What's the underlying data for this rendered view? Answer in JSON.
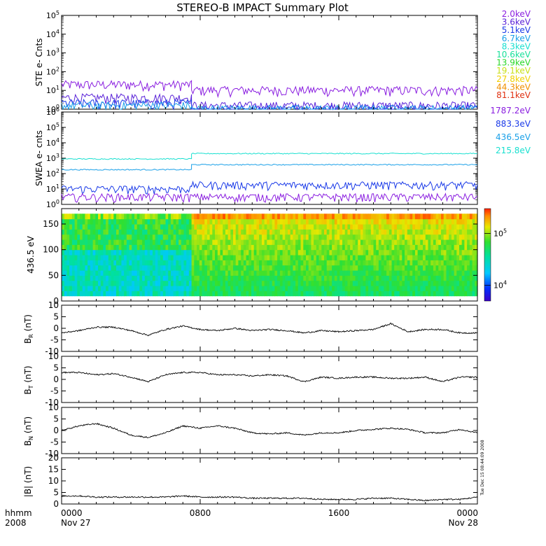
{
  "title": "STEREO-B IMPACT Summary Plot",
  "timestamp_vertical": "Tue Dec 15 08:44:09 2008",
  "time_axis": {
    "format_label": "hhmm",
    "year_label": "2008",
    "ticks": [
      {
        "hour": 0,
        "label": "0000",
        "date": "Nov 27"
      },
      {
        "hour": 8,
        "label": "0800",
        "date": ""
      },
      {
        "hour": 16,
        "label": "1600",
        "date": ""
      },
      {
        "hour": 24,
        "label": "0000",
        "date": "Nov 28"
      }
    ]
  },
  "legends": {
    "ste": [
      {
        "label": "2.0keV",
        "color": "#8a1ee0"
      },
      {
        "label": "3.6keV",
        "color": "#5a22d8"
      },
      {
        "label": "5.1keV",
        "color": "#1a3ae8"
      },
      {
        "label": "6.7keV",
        "color": "#1aa0e8"
      },
      {
        "label": "8.3keV",
        "color": "#1ae0d0"
      },
      {
        "label": "10.6keV",
        "color": "#1ae09a"
      },
      {
        "label": "13.9keV",
        "color": "#2ad82a"
      },
      {
        "label": "19.1keV",
        "color": "#c8e01a"
      },
      {
        "label": "27.8keV",
        "color": "#f0d000"
      },
      {
        "label": "44.3keV",
        "color": "#f09000"
      },
      {
        "label": "81.1keV",
        "color": "#e03010"
      }
    ],
    "swea": [
      {
        "label": "1787.2eV",
        "color": "#8a1ee0"
      },
      {
        "label": "883.3eV",
        "color": "#1a3ae8"
      },
      {
        "label": "436.5eV",
        "color": "#1aa0e8"
      },
      {
        "label": "215.8eV",
        "color": "#1ae0d0"
      }
    ]
  },
  "colorbar": {
    "labels": [
      {
        "text": "10^5",
        "value": 100000
      },
      {
        "text": "10^4",
        "value": 10000
      }
    ],
    "range": [
      5000,
      300000
    ]
  },
  "chart_data": [
    {
      "type": "line",
      "ylabel": "STE e- Cnts",
      "yscale": "log",
      "ylim": [
        1,
        100000
      ],
      "ytick_labels": [
        "10^0",
        "10^1",
        "10^2",
        "10^3",
        "10^4",
        "10^5"
      ],
      "series": [
        {
          "name": "2.0keV",
          "segments": [
            {
              "x": [
                0,
                7.5
              ],
              "level": 20
            },
            {
              "x": [
                7.5,
                24
              ],
              "level": 10
            }
          ]
        },
        {
          "name": "3.6keV",
          "segments": [
            {
              "x": [
                0,
                7.5
              ],
              "level": 4
            },
            {
              "x": [
                7.5,
                24
              ],
              "level": 1.5
            }
          ]
        },
        {
          "name": "5.1keV",
          "segments": [
            {
              "x": [
                0,
                7.5
              ],
              "level": 2
            },
            {
              "x": [
                7.5,
                24
              ],
              "level": 1
            }
          ]
        },
        {
          "name": "6.7keV",
          "segments": [
            {
              "x": [
                0,
                7.5
              ],
              "level": 1.5
            },
            {
              "x": [
                7.5,
                24
              ],
              "level": 1
            }
          ]
        }
      ]
    },
    {
      "type": "line",
      "ylabel": "SWEA e- cnts",
      "yscale": "log",
      "ylim": [
        1,
        1000000
      ],
      "ytick_labels": [
        "10^0",
        "10^1",
        "10^2",
        "10^3",
        "10^4",
        "10^5",
        "10^6"
      ],
      "series": [
        {
          "name": "215.8eV",
          "segments": [
            {
              "x": [
                0,
                7.5
              ],
              "level": 900
            },
            {
              "x": [
                7.5,
                24
              ],
              "level": 2000
            }
          ]
        },
        {
          "name": "436.5eV",
          "segments": [
            {
              "x": [
                0,
                7.5
              ],
              "level": 180
            },
            {
              "x": [
                7.5,
                24
              ],
              "level": 380
            }
          ]
        },
        {
          "name": "883.3eV",
          "segments": [
            {
              "x": [
                0,
                7.5
              ],
              "level": 10
            },
            {
              "x": [
                7.5,
                24
              ],
              "level": 18
            }
          ]
        },
        {
          "name": "1787.2eV",
          "segments": [
            {
              "x": [
                0,
                24
              ],
              "level": 3
            }
          ]
        }
      ]
    },
    {
      "type": "heatmap",
      "ylabel": "436.5 eV",
      "ylim": [
        0,
        180
      ],
      "yticks": [
        0,
        50,
        100,
        150
      ],
      "zscale": "log",
      "pitch_angle_range": [
        10,
        170
      ]
    },
    {
      "type": "line",
      "ylabel": "B_R (nT)",
      "ylim": [
        -10,
        10
      ],
      "yticks": [
        -10,
        -5,
        0,
        5,
        10
      ],
      "x": [
        0,
        1,
        2,
        3,
        4,
        5,
        6,
        7,
        8,
        9,
        10,
        11,
        12,
        13,
        14,
        15,
        16,
        17,
        18,
        19,
        20,
        21,
        22,
        23,
        24
      ],
      "series": [
        {
          "name": "B_R",
          "values": [
            -2,
            -1,
            0.5,
            0.5,
            -1,
            -3,
            -0.5,
            1,
            -0.5,
            -1,
            0,
            -1,
            -0.5,
            -1,
            -2,
            -1,
            -1.5,
            -1,
            -0.5,
            2,
            -1.5,
            -0.5,
            -0.5,
            -2,
            -2
          ]
        }
      ]
    },
    {
      "type": "line",
      "ylabel": "B_T (nT)",
      "ylim": [
        -10,
        10
      ],
      "yticks": [
        -10,
        -5,
        0,
        5,
        10
      ],
      "x": [
        0,
        1,
        2,
        3,
        4,
        5,
        6,
        7,
        8,
        9,
        10,
        11,
        12,
        13,
        14,
        15,
        16,
        17,
        18,
        19,
        20,
        21,
        22,
        23,
        24
      ],
      "series": [
        {
          "name": "B_T",
          "values": [
            3,
            3,
            2,
            2.5,
            1,
            -1,
            2,
            3,
            3,
            2,
            2,
            1.5,
            2,
            1.5,
            -1,
            1,
            0.5,
            1,
            1,
            0.5,
            0.5,
            1,
            -1,
            1,
            1
          ]
        }
      ]
    },
    {
      "type": "line",
      "ylabel": "B_N (nT)",
      "ylim": [
        -10,
        10
      ],
      "yticks": [
        -10,
        -5,
        0,
        5,
        10
      ],
      "x": [
        0,
        1,
        2,
        3,
        4,
        5,
        6,
        7,
        8,
        9,
        10,
        11,
        12,
        13,
        14,
        15,
        16,
        17,
        18,
        19,
        20,
        21,
        22,
        23,
        24
      ],
      "series": [
        {
          "name": "B_N",
          "values": [
            0,
            2,
            3,
            1,
            -2,
            -3,
            -1,
            2,
            1,
            2,
            1,
            -1,
            -1.5,
            -1,
            -2,
            -1,
            -1,
            0,
            0.5,
            1,
            0.5,
            -1,
            -1,
            0.5,
            -1
          ]
        }
      ]
    },
    {
      "type": "line",
      "ylabel": "|B| (nT)",
      "ylim": [
        0,
        20
      ],
      "yticks": [
        0,
        5,
        10,
        15,
        20
      ],
      "x": [
        0,
        1,
        2,
        3,
        4,
        5,
        6,
        7,
        8,
        9,
        10,
        11,
        12,
        13,
        14,
        15,
        16,
        17,
        18,
        19,
        20,
        21,
        22,
        23,
        24
      ],
      "series": [
        {
          "name": "|B|",
          "values": [
            3.5,
            3.5,
            3,
            3,
            3,
            3,
            3,
            3.5,
            3,
            3,
            3,
            2.5,
            2.5,
            2.5,
            2.5,
            2,
            2,
            2,
            2.5,
            2.5,
            2,
            1.5,
            2,
            2,
            3
          ]
        }
      ]
    }
  ]
}
